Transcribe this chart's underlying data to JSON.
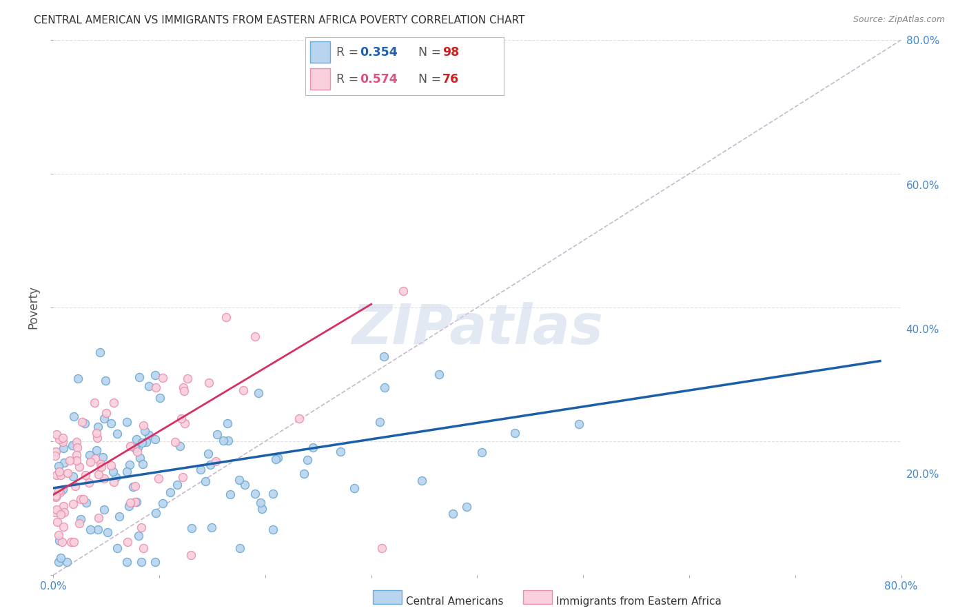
{
  "title": "CENTRAL AMERICAN VS IMMIGRANTS FROM EASTERN AFRICA POVERTY CORRELATION CHART",
  "source": "Source: ZipAtlas.com",
  "ylabel": "Poverty",
  "x_min": 0.0,
  "x_max": 0.8,
  "y_min": 0.0,
  "y_max": 0.8,
  "scatter_blue": {
    "face_color": "#b8d4ee",
    "edge_color": "#6aaad4",
    "R": 0.354,
    "N": 98
  },
  "scatter_pink": {
    "face_color": "#f9d0dc",
    "edge_color": "#e890b0",
    "R": 0.574,
    "N": 76
  },
  "trendline_blue": {
    "color": "#1a5fa8",
    "lw": 2.5,
    "x_start": 0.0,
    "x_end": 0.78,
    "y_start": 0.13,
    "y_end": 0.32
  },
  "trendline_pink": {
    "color": "#d63060",
    "lw": 2.0,
    "x_start": 0.0,
    "x_end": 0.3,
    "y_start": 0.12,
    "y_end": 0.405
  },
  "diagonal_line": {
    "color": "#c8b8d0",
    "style": "--",
    "lw": 1.2
  },
  "legend_blue_R": "0.354",
  "legend_blue_N": "98",
  "legend_pink_R": "0.574",
  "legend_pink_N": "76",
  "legend_R_color": "#555555",
  "legend_blue_R_color": "#2060b0",
  "legend_pink_R_color": "#e05080",
  "legend_N_color_blue": "#cc2222",
  "legend_N_color_pink": "#cc2222",
  "watermark_text": "ZIPatlas",
  "watermark_color": "#ccd8ea",
  "background_color": "#ffffff",
  "grid_color": "#e0e0e0",
  "right_axis_color": "#4488cc",
  "bottom_legend_blue_label": "Central Americans",
  "bottom_legend_pink_label": "Immigrants from Eastern Africa"
}
